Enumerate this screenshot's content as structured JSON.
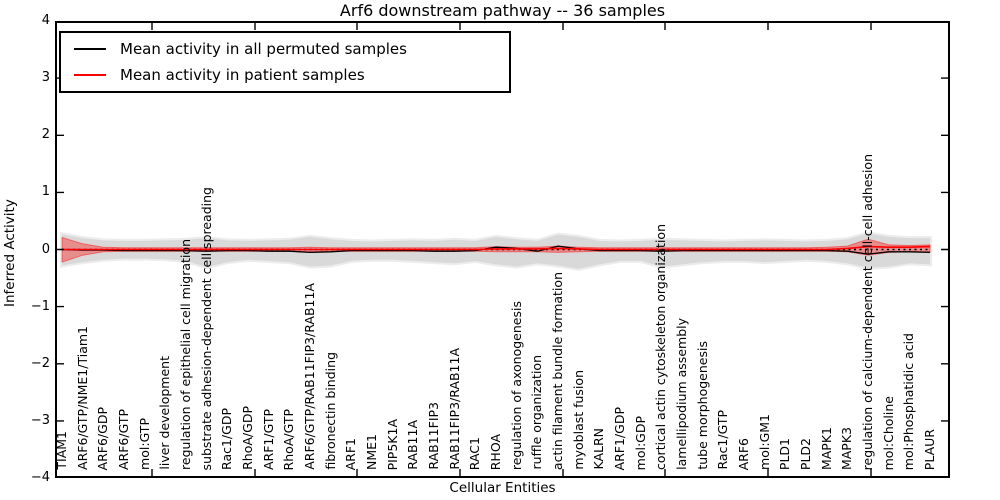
{
  "figure": {
    "title": "Arf6 downstream pathway -- 36 samples",
    "x_axis_label": "Cellular Entities",
    "y_axis_label": "Inferred Activity"
  },
  "legend": {
    "items": [
      {
        "label": "Mean activity in all permuted samples",
        "color": "#000000"
      },
      {
        "label": "Mean activity in patient samples",
        "color": "#ff0000"
      }
    ]
  },
  "axes": {
    "y_tick_labels": [
      "4",
      "3",
      "2",
      "1",
      "0",
      "−1",
      "−2",
      "−3",
      "−4"
    ],
    "y_tick_values": [
      4,
      3,
      2,
      1,
      0,
      -1,
      -2,
      -3,
      -4
    ]
  },
  "chart_data": {
    "type": "line",
    "title": "Arf6 downstream pathway -- 36 samples",
    "xlabel": "Cellular Entities",
    "ylabel": "Inferred Activity",
    "ylim": [
      -4,
      4
    ],
    "grid": false,
    "legend_position": "upper left",
    "categories": [
      "TIAM1",
      "ARF6/GTP/NME1/Tiam1",
      "ARF6/GDP",
      "ARF6/GTP",
      "mol:GTP",
      "liver development",
      "regulation of epithelial cell migration",
      "substrate adhesion-dependent cell spreading",
      "Rac1/GDP",
      "RhoA/GDP",
      "ARF1/GTP",
      "RhoA/GTP",
      "ARF6/GTP/RAB11FIP3/RAB11A",
      "fibronectin binding",
      "ARF1",
      "NME1",
      "PIP5K1A",
      "RAB11A",
      "RAB11FIP3",
      "RAB11FIP3/RAB11A",
      "RAC1",
      "RHOA",
      "regulation of axonogenesis",
      "ruffle organization",
      "actin filament bundle formation",
      "myoblast fusion",
      "KALRN",
      "ARF1/GDP",
      "mol:GDP",
      "cortical actin cytoskeleton organization",
      "lamellipodium assembly",
      "tube morphogenesis",
      "Rac1/GTP",
      "ARF6",
      "mol:GM1",
      "PLD1",
      "PLD2",
      "MAPK1",
      "MAPK3",
      "regulation of calcium-dependent cell-cell adhesion",
      "mol:Choline",
      "mol:Phosphatidic acid",
      "PLAUR"
    ],
    "series": [
      {
        "name": "Mean activity in all permuted samples",
        "color": "#000000",
        "values": [
          0.0,
          -0.01,
          -0.01,
          -0.02,
          -0.02,
          -0.02,
          -0.02,
          -0.03,
          -0.02,
          -0.02,
          -0.03,
          -0.03,
          -0.05,
          -0.04,
          -0.02,
          -0.02,
          -0.02,
          -0.02,
          -0.03,
          -0.03,
          -0.02,
          0.04,
          0.02,
          -0.03,
          0.06,
          0.01,
          -0.02,
          -0.02,
          -0.02,
          -0.03,
          -0.02,
          -0.02,
          -0.02,
          -0.02,
          -0.02,
          -0.02,
          -0.02,
          -0.02,
          -0.03,
          -0.08,
          -0.04,
          -0.04,
          -0.05
        ]
      },
      {
        "name": "Mean activity in patient samples",
        "color": "#ff0000",
        "values": [
          0,
          0,
          0,
          0,
          0,
          0,
          0,
          0,
          0,
          0,
          0,
          0,
          0,
          0,
          0,
          0,
          0,
          0,
          0,
          0,
          0,
          0.01,
          0.01,
          0.01,
          0.02,
          0.01,
          0,
          0,
          0,
          0,
          0,
          0,
          0,
          0,
          0,
          0,
          0,
          0,
          0.02,
          0.05,
          0.04,
          0.04,
          0.05
        ]
      }
    ],
    "bands": [
      {
        "name": "permuted-activity-range",
        "color": "#d9d9d9",
        "upper": [
          0.27,
          0.2,
          0.16,
          0.15,
          0.15,
          0.16,
          0.17,
          0.2,
          0.16,
          0.15,
          0.16,
          0.17,
          0.22,
          0.18,
          0.15,
          0.14,
          0.15,
          0.16,
          0.15,
          0.17,
          0.15,
          0.22,
          0.18,
          0.15,
          0.26,
          0.22,
          0.15,
          0.14,
          0.15,
          0.17,
          0.16,
          0.15,
          0.14,
          0.15,
          0.16,
          0.15,
          0.14,
          0.15,
          0.18,
          0.28,
          0.22,
          0.2,
          0.2
        ],
        "lower": [
          -0.28,
          -0.22,
          -0.18,
          -0.16,
          -0.16,
          -0.17,
          -0.2,
          -0.31,
          -0.22,
          -0.18,
          -0.2,
          -0.22,
          -0.3,
          -0.28,
          -0.2,
          -0.18,
          -0.18,
          -0.2,
          -0.22,
          -0.24,
          -0.2,
          -0.26,
          -0.3,
          -0.24,
          -0.28,
          -0.34,
          -0.26,
          -0.2,
          -0.2,
          -0.3,
          -0.26,
          -0.22,
          -0.2,
          -0.2,
          -0.22,
          -0.2,
          -0.18,
          -0.2,
          -0.24,
          -0.32,
          -0.3,
          -0.24,
          -0.26
        ]
      },
      {
        "name": "patient-activity-range",
        "color": "#ff0000",
        "alpha": 0.35,
        "upper": [
          0.21,
          0.1,
          0.04,
          0.03,
          0.03,
          0.03,
          0.03,
          0.03,
          0.03,
          0.03,
          0.03,
          0.03,
          0.04,
          0.03,
          0.03,
          0.03,
          0.03,
          0.03,
          0.03,
          0.03,
          0.03,
          0.05,
          0.04,
          0.04,
          0.06,
          0.04,
          0.03,
          0.03,
          0.03,
          0.03,
          0.03,
          0.03,
          0.03,
          0.03,
          0.03,
          0.03,
          0.03,
          0.04,
          0.06,
          0.18,
          0.08,
          0.07,
          0.08
        ],
        "lower": [
          -0.22,
          -0.1,
          -0.04,
          -0.03,
          -0.03,
          -0.03,
          -0.03,
          -0.03,
          -0.03,
          -0.03,
          -0.03,
          -0.03,
          -0.04,
          -0.03,
          -0.03,
          -0.03,
          -0.03,
          -0.03,
          -0.03,
          -0.03,
          -0.03,
          -0.04,
          -0.04,
          -0.04,
          -0.05,
          -0.04,
          -0.03,
          -0.03,
          -0.03,
          -0.03,
          -0.03,
          -0.03,
          -0.03,
          -0.03,
          -0.03,
          -0.03,
          -0.03,
          -0.03,
          -0.04,
          -0.1,
          -0.05,
          -0.04,
          -0.04
        ]
      }
    ],
    "zero_line": {
      "style": "dotted",
      "color": "#000000",
      "y": 0
    }
  }
}
